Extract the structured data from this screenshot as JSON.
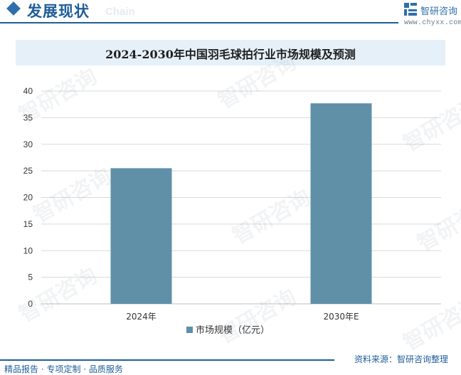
{
  "header": {
    "section_title": "发展现状",
    "section_subtitle": "Chain",
    "brand_name": "智研咨询",
    "brand_url": "www.chyxx.com"
  },
  "chart_title": "2024-2030年中国羽毛球拍行业市场规模及预测",
  "watermark": "智研咨询",
  "chart_data": {
    "type": "bar",
    "title": "2024-2030年中国羽毛球拍行业市场规模及预测",
    "categories": [
      "2024年",
      "2030年E"
    ],
    "series": [
      {
        "name": "市场规模（亿元）",
        "values": [
          25.5,
          37.7
        ]
      }
    ],
    "yticks": [
      "0",
      "5",
      "10",
      "15",
      "20",
      "25",
      "30",
      "35",
      "40"
    ],
    "ylim": [
      0,
      40
    ],
    "xlabel": "",
    "ylabel": "",
    "grid": true,
    "legend_position": "bottom",
    "bar_color": "#5f90a8"
  },
  "footer": {
    "source": "资料来源：智研咨询整理",
    "tagline": "精品报告 · 专项定制 · 品质服务"
  }
}
